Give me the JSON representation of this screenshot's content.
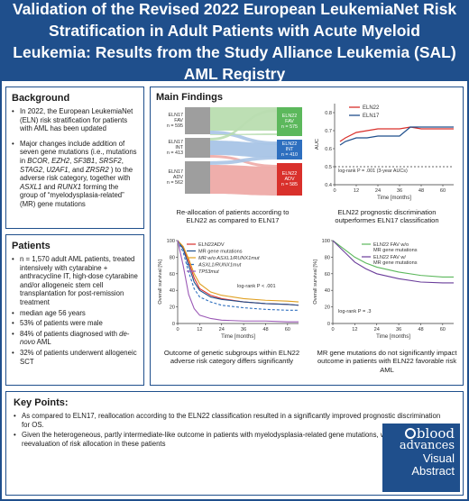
{
  "header": {
    "title": "Validation of the Revised 2022 European LeukemiaNet Risk Stratification in Adult Patients with Acute Myeloid Leukemia: Results from the Study Alliance Leukemia (SAL) AML Registry"
  },
  "background": {
    "title": "Background",
    "bullet1": "In 2022, the European LeukemiaNet (ELN) risk stratification for patients with AML has been updated",
    "bullet2": "Major changes include addition of seven gene mutations (i.e., mutations in BCOR, EZH2, SF3B1, SRSF2, STAG2, U2AF1, and ZRSR2 ) to the adverse risk category, together with ASXL1 and RUNX1 forming the group of “myelodysplasia-related” (MR) gene mutations"
  },
  "patients": {
    "title": "Patients",
    "bullets": [
      "n = 1,570 adult AML patients, treated intensively with cytarabine + anthracycline IT, high-dose cytarabine and/or allogeneic stem cell transplantation for post-remission treatment",
      "median age 56 years",
      "53% of patients were male",
      "84% of patients diagnosed with de-novo AML",
      "32% of patients underwent allogeneic SCT"
    ]
  },
  "main": {
    "title": "Main Findings",
    "sankey": {
      "left": [
        {
          "name": "ELN17",
          "cat": "FAV",
          "n": "n = 595"
        },
        {
          "name": "ELN17",
          "cat": "INT",
          "n": "n = 413"
        },
        {
          "name": "ELN17",
          "cat": "ADV",
          "n": "n = 562"
        }
      ],
      "right": [
        {
          "name": "ELN22",
          "cat": "FAV",
          "n": "n = 575"
        },
        {
          "name": "ELN22",
          "cat": "INT",
          "n": "n = 410"
        },
        {
          "name": "ELN22",
          "cat": "ADV",
          "n": "n = 585"
        }
      ],
      "colors": {
        "fav": "#5cb85c",
        "int": "#2e6fbf",
        "adv": "#d9302b",
        "flow_fav": "#b9ddb0",
        "flow_int": "#a8c4e6",
        "flow_adv": "#eeaaa6",
        "left_box": "#9e9e9e"
      },
      "caption": "Re-allocation of patients according to ELN22 as compared to ELN17"
    },
    "auc": {
      "chart_data": {
        "type": "line",
        "x": [
          3,
          6,
          12,
          18,
          24,
          30,
          36,
          42,
          48,
          54,
          60,
          66
        ],
        "series": [
          {
            "name": "ELN22",
            "color": "#d9302b",
            "values": [
              0.64,
              0.66,
              0.69,
              0.7,
              0.71,
              0.71,
              0.71,
              0.72,
              0.71,
              0.71,
              0.71,
              0.71
            ]
          },
          {
            "name": "ELN17",
            "color": "#1f4f8c",
            "values": [
              0.62,
              0.64,
              0.66,
              0.66,
              0.67,
              0.67,
              0.67,
              0.72,
              0.72,
              0.72,
              0.72,
              0.72
            ]
          }
        ],
        "ylabel": "AUC",
        "xlabel": "Time [months]",
        "xticks": [
          "0",
          "12",
          "24",
          "36",
          "48",
          "60"
        ],
        "yticks": [
          "0.4",
          "0.5",
          "0.6",
          "0.7",
          "0.8"
        ],
        "xlim": [
          0,
          66
        ],
        "ylim": [
          0.4,
          0.85
        ],
        "reference": 0.5
      },
      "annotation": "log-rank P = .001 (3-year AUCs)",
      "caption": "ELN22 prognostic discrimination outperformes ELN17 classification"
    },
    "km_adv": {
      "chart_data": {
        "type": "line",
        "series": [
          {
            "name": "ELN22ADV",
            "color": "#d9302b",
            "style": "solid",
            "points": [
              [
                0,
                100
              ],
              [
                3,
                92
              ],
              [
                6,
                75
              ],
              [
                9,
                55
              ],
              [
                12,
                42
              ],
              [
                18,
                34
              ],
              [
                24,
                30
              ],
              [
                36,
                26
              ],
              [
                48,
                24
              ],
              [
                60,
                23
              ],
              [
                66,
                22
              ]
            ]
          },
          {
            "name": "MR gene mutations",
            "color": "#1f4f8c",
            "style": "solid",
            "points": [
              [
                0,
                100
              ],
              [
                3,
                90
              ],
              [
                6,
                70
              ],
              [
                9,
                50
              ],
              [
                12,
                40
              ],
              [
                18,
                32
              ],
              [
                24,
                29
              ],
              [
                36,
                26
              ],
              [
                48,
                24
              ],
              [
                60,
                23
              ],
              [
                66,
                22
              ]
            ]
          },
          {
            "name": "MR w/o ASXL1/RUNX1mut",
            "color": "#e0a020",
            "style": "solid",
            "points": [
              [
                0,
                100
              ],
              [
                3,
                93
              ],
              [
                6,
                78
              ],
              [
                9,
                60
              ],
              [
                12,
                48
              ],
              [
                18,
                38
              ],
              [
                24,
                34
              ],
              [
                36,
                30
              ],
              [
                48,
                28
              ],
              [
                60,
                27
              ],
              [
                66,
                26
              ]
            ]
          },
          {
            "name": "ASXL1/RUNX1mut",
            "color": "#2e6fbf",
            "style": "dashed",
            "points": [
              [
                0,
                100
              ],
              [
                3,
                86
              ],
              [
                6,
                62
              ],
              [
                9,
                42
              ],
              [
                12,
                32
              ],
              [
                18,
                26
              ],
              [
                24,
                22
              ],
              [
                36,
                19
              ],
              [
                48,
                17
              ],
              [
                60,
                16
              ],
              [
                66,
                16
              ]
            ]
          },
          {
            "name": "TP53mut",
            "color": "#9b59b6",
            "style": "solid",
            "points": [
              [
                0,
                100
              ],
              [
                3,
                70
              ],
              [
                6,
                35
              ],
              [
                9,
                18
              ],
              [
                12,
                10
              ],
              [
                18,
                6
              ],
              [
                24,
                4
              ],
              [
                36,
                3
              ],
              [
                48,
                3
              ],
              [
                60,
                2
              ],
              [
                66,
                2
              ]
            ]
          }
        ],
        "ylabel": "Overall survival [%]",
        "xlabel": "Time [months]",
        "xticks": [
          "0",
          "12",
          "24",
          "36",
          "48",
          "60"
        ],
        "yticks": [
          "0",
          "20",
          "40",
          "60",
          "80",
          "100"
        ],
        "xlim": [
          0,
          66
        ],
        "ylim": [
          0,
          100
        ]
      },
      "annotation": "log-rank P < .001",
      "caption": "Outcome of genetic subgroups within ELN22 adverse risk category differs significantly"
    },
    "km_fav": {
      "chart_data": {
        "type": "line",
        "series": [
          {
            "name": "ELN22 FAV w/o MR gene mutations",
            "color": "#5cb85c",
            "style": "solid",
            "points": [
              [
                0,
                100
              ],
              [
                6,
                90
              ],
              [
                12,
                80
              ],
              [
                18,
                73
              ],
              [
                24,
                68
              ],
              [
                36,
                62
              ],
              [
                48,
                58
              ],
              [
                60,
                56
              ],
              [
                66,
                56
              ]
            ]
          },
          {
            "name": "ELN22 FAV w/ MR gene mutations",
            "color": "#6a3d9a",
            "style": "solid",
            "points": [
              [
                0,
                100
              ],
              [
                6,
                87
              ],
              [
                12,
                74
              ],
              [
                18,
                66
              ],
              [
                24,
                60
              ],
              [
                36,
                54
              ],
              [
                48,
                50
              ],
              [
                60,
                49
              ],
              [
                66,
                49
              ]
            ]
          }
        ],
        "ylabel": "Overall survival [%]",
        "xlabel": "Time [months]",
        "xticks": [
          "0",
          "12",
          "24",
          "36",
          "48",
          "60"
        ],
        "yticks": [
          "0",
          "20",
          "40",
          "60",
          "80",
          "100"
        ],
        "xlim": [
          0,
          66
        ],
        "ylim": [
          0,
          100
        ]
      },
      "annotation": "log-rank P = .3",
      "caption": "MR gene mutations do not significantly impact outcome in patients with ELN22 favorable risk AML"
    }
  },
  "keypoints": {
    "title": "Key Points:",
    "bullets": [
      "As compared to ELN17, reallocation according to the ELN22 classification resulted in a significantly improved prognostic discrimination for OS.",
      "Given the heterogeneous, partly intermediate-like outcome in patients with myelodysplasia-related gene mutations, we suggest reevaluation of risk allocation in these patients"
    ]
  },
  "logo": {
    "line1": "blood",
    "line2": "advances",
    "line3": "Visual",
    "line4": "Abstract"
  }
}
